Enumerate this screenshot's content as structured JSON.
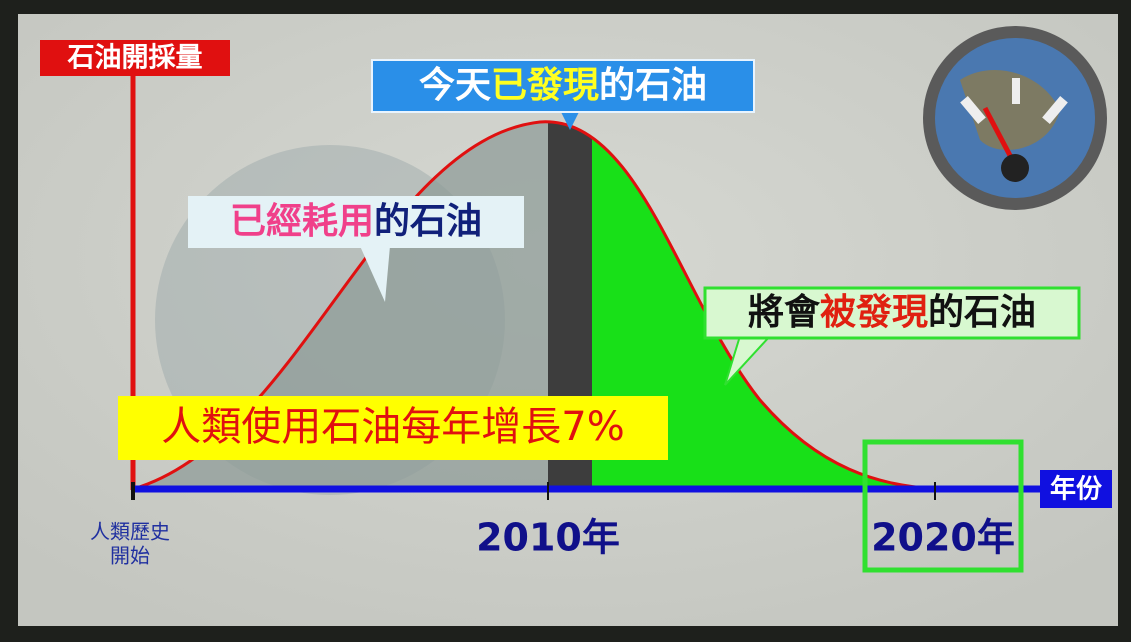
{
  "axes": {
    "y_label": "石油開採量",
    "x_label": "年份",
    "x_ticks": [
      {
        "lines": [
          "人類歷史",
          "開始"
        ]
      },
      "2010年",
      "2020年"
    ]
  },
  "callouts": {
    "discovered_today": [
      "今天",
      "已發現",
      "的石油"
    ],
    "consumed": [
      "已經耗用",
      "的石油"
    ],
    "to_be_discovered": [
      "將會",
      "被發現",
      "的石油"
    ],
    "growth": "人類使用石油每年增長7%"
  }
}
